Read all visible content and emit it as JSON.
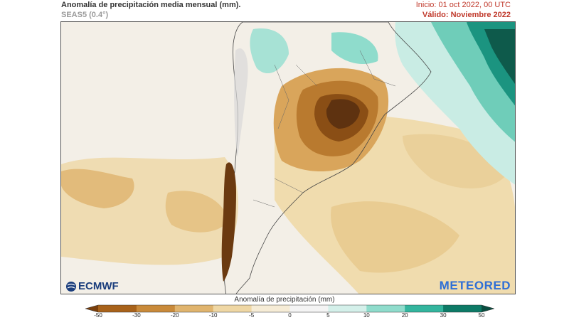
{
  "header": {
    "title": "Anomalía de precipitación media mensual (mm).",
    "model": "SEAS5 (0.4°)",
    "init": "Inicio: 01 oct 2022, 00 UTC",
    "valid": "Válido: Noviembre 2022"
  },
  "logos": {
    "left": "ECMWF",
    "right": "METEORED"
  },
  "colorbar": {
    "title": "Anomalía de precipitación (mm)",
    "ticks": [
      "-50",
      "-30",
      "-20",
      "-10",
      "-5",
      "0",
      "5",
      "10",
      "20",
      "30",
      "50"
    ],
    "colors": [
      "#7a3f0c",
      "#a8621a",
      "#c98a3a",
      "#e0b46e",
      "#efd7a4",
      "#f6ecd6",
      "#f4f4f4",
      "#d4f0ea",
      "#8fdccc",
      "#33b59e",
      "#0d7a66",
      "#0a4d40"
    ]
  }
}
